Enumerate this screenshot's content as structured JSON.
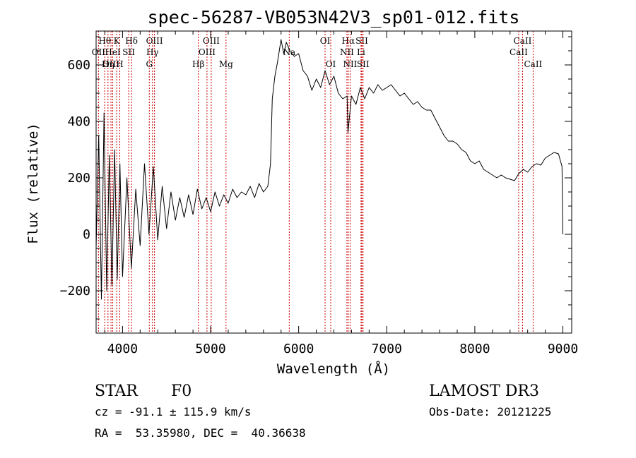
{
  "chart_data": {
    "type": "line",
    "title": "spec-56287-VB053N42V3_sp01-012.fits",
    "xlabel": "Wavelength (Å)",
    "ylabel": "Flux (relative)",
    "xlim": [
      3700,
      9100
    ],
    "ylim": [
      -350,
      720
    ],
    "x_ticks": [
      4000,
      5000,
      6000,
      7000,
      8000,
      9000
    ],
    "y_ticks": [
      -200,
      0,
      200,
      400,
      600
    ],
    "grid": false,
    "line_color": "#000000",
    "marker_color": "#cc0000",
    "series": [
      {
        "x": [
          3700,
          3730,
          3760,
          3790,
          3820,
          3850,
          3880,
          3910,
          3940,
          3970,
          4000,
          4050,
          4100,
          4150,
          4200,
          4250,
          4300,
          4350,
          4400,
          4450,
          4500,
          4550,
          4600,
          4650,
          4700,
          4750,
          4800,
          4850,
          4900,
          4950,
          5000,
          5050,
          5100,
          5150,
          5200,
          5250,
          5300,
          5350,
          5400,
          5450,
          5500,
          5550,
          5600,
          5650,
          5680,
          5700,
          5730,
          5760,
          5800,
          5830,
          5860,
          5900,
          5950,
          6000,
          6050,
          6100,
          6150,
          6200,
          6250,
          6300,
          6350,
          6400,
          6450,
          6500,
          6550,
          6560,
          6600,
          6650,
          6700,
          6750,
          6800,
          6850,
          6900,
          6950,
          7000,
          7050,
          7100,
          7150,
          7200,
          7250,
          7300,
          7350,
          7400,
          7450,
          7500,
          7550,
          7600,
          7650,
          7700,
          7750,
          7800,
          7850,
          7900,
          7950,
          8000,
          8050,
          8100,
          8150,
          8200,
          8250,
          8300,
          8350,
          8400,
          8450,
          8500,
          8550,
          8600,
          8650,
          8700,
          8750,
          8800,
          8850,
          8900,
          8950,
          8990,
          9000
        ],
        "y": [
          -50,
          350,
          -230,
          430,
          -200,
          280,
          -180,
          300,
          -160,
          250,
          -150,
          200,
          -120,
          160,
          -40,
          250,
          0,
          240,
          -20,
          170,
          20,
          150,
          50,
          130,
          60,
          140,
          70,
          160,
          90,
          130,
          80,
          150,
          100,
          140,
          110,
          160,
          130,
          150,
          140,
          170,
          130,
          180,
          150,
          170,
          250,
          480,
          560,
          610,
          690,
          640,
          680,
          650,
          630,
          640,
          580,
          560,
          510,
          550,
          520,
          580,
          530,
          560,
          500,
          480,
          490,
          360,
          490,
          460,
          520,
          480,
          520,
          500,
          530,
          510,
          520,
          530,
          510,
          490,
          500,
          480,
          460,
          470,
          450,
          440,
          440,
          410,
          380,
          350,
          330,
          330,
          320,
          300,
          290,
          260,
          250,
          260,
          230,
          220,
          210,
          200,
          210,
          200,
          195,
          190,
          215,
          230,
          220,
          240,
          250,
          245,
          270,
          280,
          290,
          285,
          240,
          0
        ]
      }
    ],
    "spectral_lines": [
      {
        "label": "Hθ",
        "wavelength": 3798,
        "row": 1
      },
      {
        "label": "OII",
        "wavelength": 3727,
        "row": 2
      },
      {
        "label": "Hη",
        "wavelength": 3835,
        "row": 3
      },
      {
        "label": "OIII",
        "wavelength": 3869,
        "row": 3
      },
      {
        "label": "K",
        "wavelength": 3934,
        "row": 1
      },
      {
        "label": "HeI",
        "wavelength": 3889,
        "row": 2
      },
      {
        "label": "SII",
        "wavelength": 4070,
        "row": 2
      },
      {
        "label": "H",
        "wavelength": 3969,
        "row": 3
      },
      {
        "label": "Hδ",
        "wavelength": 4102,
        "row": 1
      },
      {
        "label": "OIII",
        "wavelength": 4363,
        "row": 1
      },
      {
        "label": "Hγ",
        "wavelength": 4340,
        "row": 2
      },
      {
        "label": "G",
        "wavelength": 4304,
        "row": 3
      },
      {
        "label": "OIII",
        "wavelength": 5007,
        "row": 1
      },
      {
        "label": "OIII",
        "wavelength": 4959,
        "row": 2
      },
      {
        "label": "Hβ",
        "wavelength": 4861,
        "row": 3
      },
      {
        "label": "Mg",
        "wavelength": 5175,
        "row": 3
      },
      {
        "label": "Na",
        "wavelength": 5893,
        "row": 2
      },
      {
        "label": "OI",
        "wavelength": 6300,
        "row": 1
      },
      {
        "label": "OI",
        "wavelength": 6364,
        "row": 3
      },
      {
        "label": "Hα",
        "wavelength": 6563,
        "row": 1
      },
      {
        "label": "SII",
        "wavelength": 6717,
        "row": 1
      },
      {
        "label": "NII",
        "wavelength": 6548,
        "row": 2
      },
      {
        "label": "Li",
        "wavelength": 6708,
        "row": 2
      },
      {
        "label": "NII",
        "wavelength": 6584,
        "row": 3
      },
      {
        "label": "SII",
        "wavelength": 6731,
        "row": 3
      },
      {
        "label": "CaII",
        "wavelength": 8542,
        "row": 1
      },
      {
        "label": "CaII",
        "wavelength": 8498,
        "row": 2
      },
      {
        "label": "CaII",
        "wavelength": 8662,
        "row": 3
      }
    ]
  },
  "info": {
    "object_class": "STAR",
    "subclass": "F0",
    "survey": "LAMOST DR3",
    "redshift": "cz = -91.1 ± 115.9 km/s",
    "obs_date": "Obs-Date: 20121225",
    "coords": "RA =  53.35980, DEC =  40.36638"
  }
}
